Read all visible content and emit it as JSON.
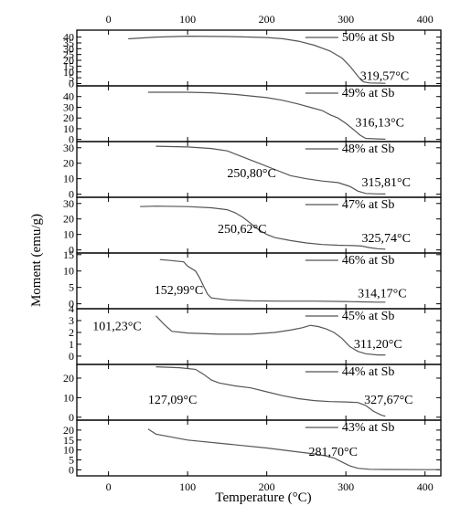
{
  "chart_data": {
    "type": "line",
    "xlabel": "Temperature (°C)",
    "ylabel": "Moment (emu/g)",
    "xlim": [
      -40,
      420
    ],
    "x_ticks": [
      0,
      100,
      200,
      300,
      400
    ],
    "panels": [
      {
        "name": "50% at Sb",
        "ylim": [
          -2,
          46
        ],
        "y_ticks": [
          0,
          5,
          10,
          15,
          20,
          25,
          30,
          35,
          40
        ],
        "annotations": [
          {
            "text": "319,57°C",
            "x": 318,
            "y": 3
          }
        ],
        "points": [
          [
            25,
            38.5
          ],
          [
            60,
            40
          ],
          [
            100,
            40.8
          ],
          [
            150,
            40.5
          ],
          [
            180,
            40
          ],
          [
            200,
            39.6
          ],
          [
            220,
            38.6
          ],
          [
            240,
            36.5
          ],
          [
            260,
            33
          ],
          [
            280,
            28
          ],
          [
            295,
            22
          ],
          [
            305,
            15
          ],
          [
            312,
            9
          ],
          [
            318,
            4
          ],
          [
            322,
            1.5
          ],
          [
            330,
            0.5
          ],
          [
            350,
            0.2
          ]
        ]
      },
      {
        "name": "49% at Sb",
        "ylim": [
          -2,
          50
        ],
        "y_ticks": [
          0,
          10,
          20,
          30,
          40
        ],
        "annotations": [
          {
            "text": "316,13°C",
            "x": 312,
            "y": 12
          }
        ],
        "points": [
          [
            50,
            44
          ],
          [
            100,
            44
          ],
          [
            130,
            43.5
          ],
          [
            160,
            42
          ],
          [
            200,
            39
          ],
          [
            220,
            36.5
          ],
          [
            240,
            33
          ],
          [
            255,
            30
          ],
          [
            270,
            27
          ],
          [
            280,
            23
          ],
          [
            290,
            20
          ],
          [
            300,
            15
          ],
          [
            310,
            9
          ],
          [
            318,
            4
          ],
          [
            325,
            1
          ],
          [
            340,
            0.5
          ],
          [
            350,
            0.2
          ]
        ]
      },
      {
        "name": "48% at Sb",
        "ylim": [
          -2,
          34
        ],
        "y_ticks": [
          0,
          10,
          20,
          30
        ],
        "annotations": [
          {
            "text": "250,80°C",
            "x": 150,
            "y": 11
          },
          {
            "text": "315,81°C",
            "x": 320,
            "y": 5
          }
        ],
        "points": [
          [
            60,
            31
          ],
          [
            100,
            30.5
          ],
          [
            130,
            29.5
          ],
          [
            150,
            28
          ],
          [
            170,
            24
          ],
          [
            190,
            20
          ],
          [
            210,
            16
          ],
          [
            230,
            12
          ],
          [
            250,
            10
          ],
          [
            270,
            8.5
          ],
          [
            290,
            7.5
          ],
          [
            305,
            5
          ],
          [
            315,
            2
          ],
          [
            325,
            0.5
          ],
          [
            340,
            0.2
          ],
          [
            350,
            0.1
          ]
        ]
      },
      {
        "name": "47% at Sb",
        "ylim": [
          -2,
          34
        ],
        "y_ticks": [
          0,
          10,
          20,
          30
        ],
        "annotations": [
          {
            "text": "250,62°C",
            "x": 138,
            "y": 11
          },
          {
            "text": "325,74°C",
            "x": 320,
            "y": 5
          }
        ],
        "points": [
          [
            40,
            28
          ],
          [
            60,
            28.3
          ],
          [
            100,
            28
          ],
          [
            130,
            27.2
          ],
          [
            150,
            26
          ],
          [
            160,
            24
          ],
          [
            170,
            21
          ],
          [
            180,
            17
          ],
          [
            190,
            13
          ],
          [
            200,
            10
          ],
          [
            210,
            8
          ],
          [
            230,
            6
          ],
          [
            250,
            4.5
          ],
          [
            270,
            3.5
          ],
          [
            290,
            3
          ],
          [
            310,
            2.8
          ],
          [
            320,
            2.5
          ],
          [
            330,
            1.5
          ],
          [
            340,
            0.8
          ],
          [
            350,
            0.5
          ]
        ]
      },
      {
        "name": "46% at Sb",
        "ylim": [
          -1.5,
          15.5
        ],
        "y_ticks": [
          0,
          5,
          10,
          15
        ],
        "annotations": [
          {
            "text": "152,99°C",
            "x": 58,
            "y": 3
          },
          {
            "text": "314,17°C",
            "x": 315,
            "y": 2
          }
        ],
        "points": [
          [
            65,
            13.5
          ],
          [
            80,
            13.2
          ],
          [
            95,
            12.8
          ],
          [
            100,
            11.5
          ],
          [
            110,
            10
          ],
          [
            115,
            8
          ],
          [
            120,
            5.5
          ],
          [
            125,
            3
          ],
          [
            130,
            1.8
          ],
          [
            150,
            1.2
          ],
          [
            180,
            0.9
          ],
          [
            220,
            0.8
          ],
          [
            260,
            0.8
          ],
          [
            300,
            0.7
          ],
          [
            320,
            0.6
          ],
          [
            340,
            0.5
          ],
          [
            350,
            0.5
          ]
        ]
      },
      {
        "name": "45% at Sb",
        "ylim": [
          -0.7,
          4
        ],
        "y_ticks": [
          0,
          1,
          2,
          3,
          4
        ],
        "annotations": [
          {
            "text": "101,23°C",
            "x": -20,
            "y": 2.2
          },
          {
            "text": "311,20°C",
            "x": 310,
            "y": 0.7
          }
        ],
        "points": [
          [
            60,
            3.4
          ],
          [
            70,
            2.7
          ],
          [
            80,
            2.1
          ],
          [
            100,
            1.95
          ],
          [
            140,
            1.85
          ],
          [
            180,
            1.85
          ],
          [
            210,
            2
          ],
          [
            230,
            2.2
          ],
          [
            245,
            2.4
          ],
          [
            255,
            2.6
          ],
          [
            265,
            2.5
          ],
          [
            275,
            2.3
          ],
          [
            285,
            2
          ],
          [
            295,
            1.5
          ],
          [
            305,
            0.8
          ],
          [
            315,
            0.4
          ],
          [
            325,
            0.2
          ],
          [
            340,
            0.1
          ],
          [
            350,
            0.1
          ]
        ]
      },
      {
        "name": "44% at Sb",
        "ylim": [
          -1.5,
          27
        ],
        "y_ticks": [
          0,
          10,
          20
        ],
        "annotations": [
          {
            "text": "127,09°C",
            "x": 50,
            "y": 7
          },
          {
            "text": "327,67°C",
            "x": 323,
            "y": 7
          }
        ],
        "points": [
          [
            60,
            25.8
          ],
          [
            90,
            25.3
          ],
          [
            110,
            24.5
          ],
          [
            120,
            22
          ],
          [
            130,
            19
          ],
          [
            140,
            17.5
          ],
          [
            160,
            16
          ],
          [
            180,
            15
          ],
          [
            200,
            13
          ],
          [
            220,
            11
          ],
          [
            240,
            9.5
          ],
          [
            260,
            8.5
          ],
          [
            280,
            8
          ],
          [
            300,
            7.8
          ],
          [
            315,
            7.5
          ],
          [
            325,
            6
          ],
          [
            335,
            3
          ],
          [
            345,
            1
          ],
          [
            350,
            0.5
          ]
        ]
      },
      {
        "name": "43% at Sb",
        "ylim": [
          -3,
          25
        ],
        "y_ticks": [
          0,
          5,
          10,
          15,
          20
        ],
        "annotations": [
          {
            "text": "281,70°C",
            "x": 253,
            "y": 7
          }
        ],
        "points": [
          [
            50,
            20.5
          ],
          [
            60,
            18
          ],
          [
            100,
            15
          ],
          [
            150,
            13
          ],
          [
            200,
            11
          ],
          [
            240,
            9
          ],
          [
            260,
            8
          ],
          [
            275,
            7
          ],
          [
            285,
            6
          ],
          [
            295,
            4
          ],
          [
            305,
            2
          ],
          [
            315,
            0.8
          ],
          [
            330,
            0.3
          ],
          [
            350,
            0.2
          ],
          [
            400,
            0.1
          ],
          [
            420,
            0.1
          ]
        ]
      }
    ]
  }
}
